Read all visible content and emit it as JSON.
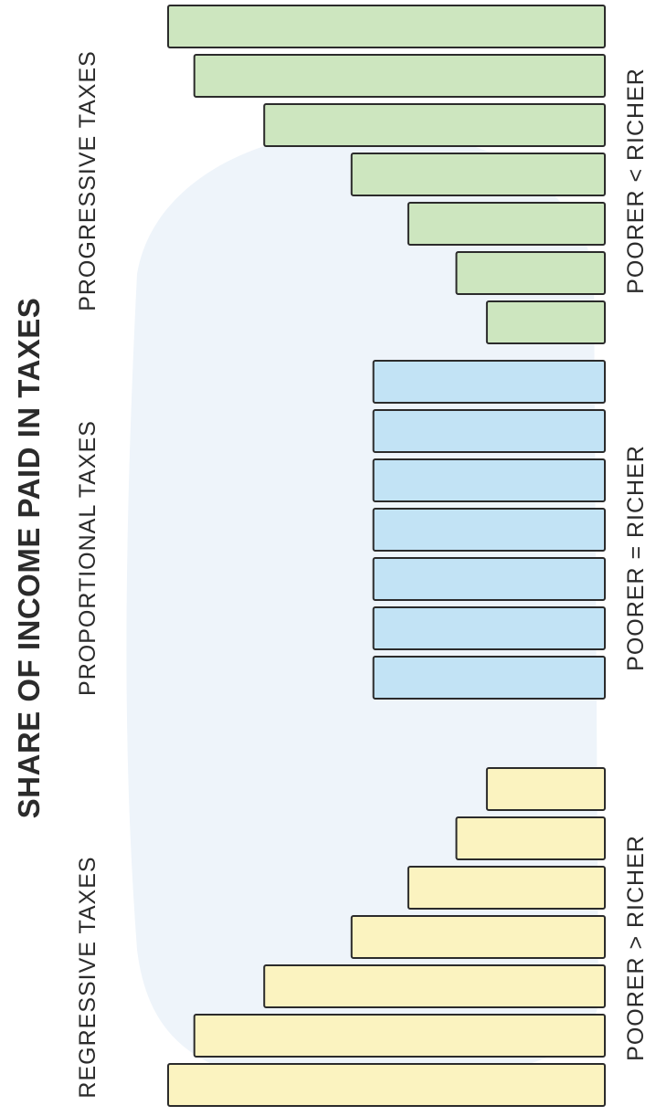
{
  "chart_data": {
    "type": "bar",
    "title": "SHARE OF INCOME PAID IN TAXES",
    "colors": {
      "regressive": "#fbf3c0",
      "proportional": "#c2e3f5",
      "progressive": "#cde6bf",
      "bar_border": "#2b2b2b",
      "background_blob": "#eef4fa"
    },
    "groups": [
      {
        "key": "regressive",
        "label": "REGRESSIVE TAXES",
        "comparison": "POORER > RICHER",
        "values": [
          100,
          94,
          78,
          58,
          45,
          34,
          27
        ]
      },
      {
        "key": "proportional",
        "label": "PROPORTIONAL TAXES",
        "comparison": "POORER = RICHER",
        "values": [
          53,
          53,
          53,
          53,
          53,
          53,
          53
        ]
      },
      {
        "key": "progressive",
        "label": "PROGRESSIVE TAXES",
        "comparison": "POORER < RICHER",
        "values": [
          27,
          34,
          45,
          58,
          78,
          94,
          100
        ]
      }
    ],
    "grid": false,
    "legend": "none"
  }
}
